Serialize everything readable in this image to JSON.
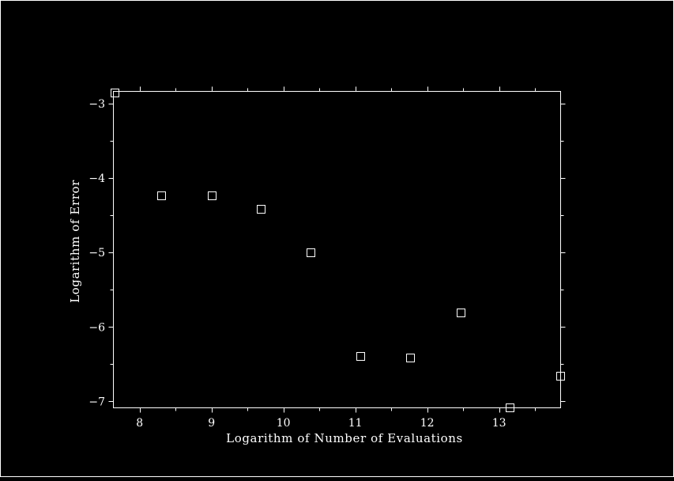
{
  "chart_data": {
    "type": "scatter",
    "xlabel": "Logarithm of Number of Evaluations",
    "ylabel": "Logarithm of Error",
    "xlim": [
      7.63,
      13.85
    ],
    "ylim": [
      -7.08,
      -2.83
    ],
    "x_ticks": [
      8,
      9,
      10,
      11,
      12,
      13
    ],
    "y_ticks": [
      -3,
      -4,
      -5,
      -6,
      -7
    ],
    "x_minor_step": 0.5,
    "y_minor_step": 0.5,
    "grid": false,
    "marker": "open-square",
    "colors": {
      "background": "#000000",
      "foreground": "#ffffff"
    },
    "points": [
      {
        "x": 7.65,
        "y": -2.85
      },
      {
        "x": 8.3,
        "y": -4.23
      },
      {
        "x": 9.0,
        "y": -4.23
      },
      {
        "x": 9.69,
        "y": -4.41
      },
      {
        "x": 10.38,
        "y": -5.0
      },
      {
        "x": 11.07,
        "y": -6.39
      },
      {
        "x": 11.76,
        "y": -6.41
      },
      {
        "x": 12.46,
        "y": -5.8
      },
      {
        "x": 13.15,
        "y": -7.08
      },
      {
        "x": 13.85,
        "y": -6.66
      }
    ]
  }
}
